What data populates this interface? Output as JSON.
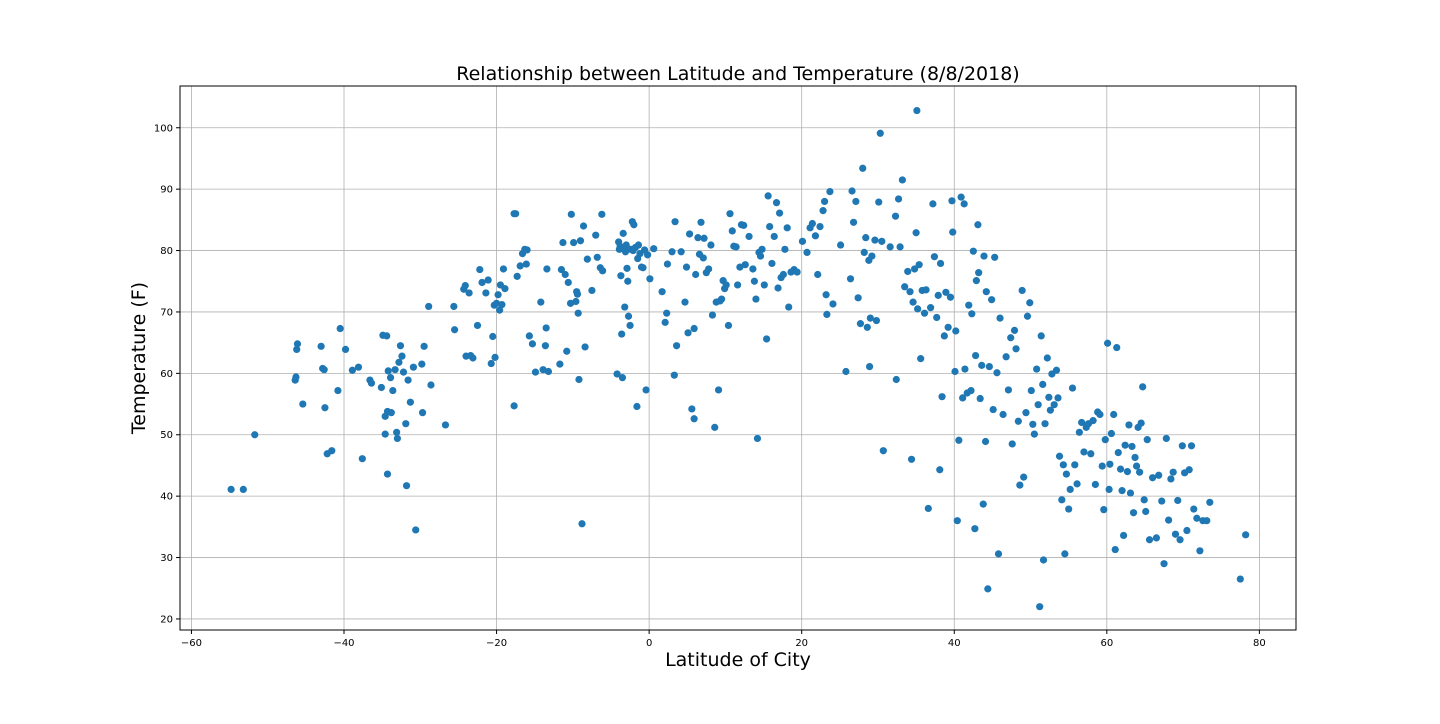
{
  "chart_data": {
    "type": "scatter",
    "title": "Relationship between Latitude and Temperature (8/8/2018)",
    "xlabel": "Latitude of City",
    "ylabel": "Temperature (F)",
    "xlim": [
      -61.5,
      84.8
    ],
    "ylim": [
      18.2,
      106.8
    ],
    "xticks": [
      -60,
      -40,
      -20,
      0,
      20,
      40,
      60,
      80
    ],
    "yticks": [
      20,
      30,
      40,
      50,
      60,
      70,
      80,
      90,
      100
    ],
    "xtick_labels": [
      "−60",
      "−40",
      "−20",
      "0",
      "20",
      "40",
      "60",
      "80"
    ],
    "ytick_labels": [
      "20",
      "30",
      "40",
      "50",
      "60",
      "70",
      "80",
      "90",
      "100"
    ],
    "grid": true,
    "marker_color": "#1f77b4",
    "points": [
      [
        -54.8,
        41.1
      ],
      [
        -53.2,
        41.1
      ],
      [
        -51.7,
        50.0
      ],
      [
        -46.4,
        58.9
      ],
      [
        -46.3,
        59.4
      ],
      [
        -46.2,
        63.9
      ],
      [
        -46.1,
        64.8
      ],
      [
        -45.4,
        55.0
      ],
      [
        -43.0,
        64.4
      ],
      [
        -42.8,
        60.8
      ],
      [
        -42.6,
        60.6
      ],
      [
        -42.5,
        54.4
      ],
      [
        -42.2,
        46.9
      ],
      [
        -41.6,
        47.4
      ],
      [
        -40.8,
        57.2
      ],
      [
        -40.5,
        67.3
      ],
      [
        -39.8,
        63.9
      ],
      [
        -38.9,
        60.5
      ],
      [
        -38.1,
        61.0
      ],
      [
        -37.6,
        46.1
      ],
      [
        -36.6,
        58.9
      ],
      [
        -36.4,
        58.4
      ],
      [
        -35.1,
        57.7
      ],
      [
        -34.9,
        66.2
      ],
      [
        -34.6,
        50.1
      ],
      [
        -34.4,
        66.1
      ],
      [
        -34.6,
        53.0
      ],
      [
        -34.3,
        53.8
      ],
      [
        -34.3,
        43.6
      ],
      [
        -34.2,
        60.4
      ],
      [
        -33.9,
        59.3
      ],
      [
        -33.8,
        53.6
      ],
      [
        -33.6,
        57.2
      ],
      [
        -33.3,
        60.6
      ],
      [
        -33.1,
        50.4
      ],
      [
        -33.0,
        49.4
      ],
      [
        -32.8,
        61.8
      ],
      [
        -32.6,
        64.5
      ],
      [
        -32.4,
        62.8
      ],
      [
        -32.2,
        60.2
      ],
      [
        -31.9,
        51.8
      ],
      [
        -31.8,
        41.7
      ],
      [
        -31.6,
        58.9
      ],
      [
        -31.3,
        55.3
      ],
      [
        -30.9,
        61.0
      ],
      [
        -30.6,
        34.5
      ],
      [
        -29.8,
        61.5
      ],
      [
        -29.7,
        53.6
      ],
      [
        -29.5,
        64.4
      ],
      [
        -28.9,
        70.9
      ],
      [
        -28.6,
        58.1
      ],
      [
        -26.7,
        51.6
      ],
      [
        -25.6,
        70.9
      ],
      [
        -25.5,
        67.1
      ],
      [
        -24.3,
        73.7
      ],
      [
        -24.1,
        74.3
      ],
      [
        -24.0,
        62.8
      ],
      [
        -23.6,
        73.1
      ],
      [
        -23.4,
        62.9
      ],
      [
        -23.1,
        62.5
      ],
      [
        -22.5,
        67.8
      ],
      [
        -22.2,
        76.9
      ],
      [
        -21.9,
        74.8
      ],
      [
        -21.4,
        73.1
      ],
      [
        -21.1,
        75.2
      ],
      [
        -20.7,
        61.6
      ],
      [
        -20.5,
        66.0
      ],
      [
        -20.3,
        71.1
      ],
      [
        -20.2,
        62.6
      ],
      [
        -20.0,
        71.4
      ],
      [
        -19.8,
        72.8
      ],
      [
        -19.6,
        70.3
      ],
      [
        -19.5,
        74.4
      ],
      [
        -19.3,
        71.2
      ],
      [
        -19.1,
        77.0
      ],
      [
        -18.9,
        73.8
      ],
      [
        -17.7,
        86.0
      ],
      [
        -17.5,
        86.0
      ],
      [
        -17.7,
        54.7
      ],
      [
        -17.3,
        75.8
      ],
      [
        -16.9,
        77.5
      ],
      [
        -16.6,
        79.5
      ],
      [
        -16.3,
        80.2
      ],
      [
        -16.1,
        77.8
      ],
      [
        -16.0,
        80.1
      ],
      [
        -15.7,
        66.1
      ],
      [
        -15.3,
        64.8
      ],
      [
        -14.9,
        60.2
      ],
      [
        -14.2,
        71.6
      ],
      [
        -13.9,
        60.6
      ],
      [
        -13.6,
        64.5
      ],
      [
        -13.5,
        67.4
      ],
      [
        -13.4,
        77.0
      ],
      [
        -13.2,
        60.3
      ],
      [
        -11.7,
        61.5
      ],
      [
        -11.5,
        76.9
      ],
      [
        -11.3,
        81.3
      ],
      [
        -11.0,
        76.1
      ],
      [
        -10.8,
        63.6
      ],
      [
        -10.6,
        74.8
      ],
      [
        -10.3,
        71.4
      ],
      [
        -10.2,
        85.9
      ],
      [
        -9.9,
        81.3
      ],
      [
        -9.6,
        71.7
      ],
      [
        -9.5,
        73.3
      ],
      [
        -9.4,
        72.9
      ],
      [
        -9.3,
        69.8
      ],
      [
        -9.2,
        59.0
      ],
      [
        -9.0,
        81.6
      ],
      [
        -8.8,
        35.5
      ],
      [
        -8.6,
        84.0
      ],
      [
        -8.4,
        64.3
      ],
      [
        -8.1,
        78.6
      ],
      [
        -7.5,
        73.5
      ],
      [
        -7.0,
        82.5
      ],
      [
        -6.8,
        78.9
      ],
      [
        -6.4,
        77.2
      ],
      [
        -6.2,
        85.9
      ],
      [
        -6.1,
        76.7
      ],
      [
        -4.2,
        59.9
      ],
      [
        -4.0,
        81.4
      ],
      [
        -3.9,
        80.2
      ],
      [
        -3.8,
        80.7
      ],
      [
        -3.7,
        75.9
      ],
      [
        -3.6,
        66.4
      ],
      [
        -3.5,
        59.3
      ],
      [
        -3.4,
        82.8
      ],
      [
        -3.3,
        80.2
      ],
      [
        -3.2,
        70.8
      ],
      [
        -3.1,
        79.8
      ],
      [
        -3.0,
        80.9
      ],
      [
        -2.9,
        77.1
      ],
      [
        -2.8,
        75.0
      ],
      [
        -2.7,
        69.3
      ],
      [
        -2.5,
        67.8
      ],
      [
        -2.4,
        80.2
      ],
      [
        -2.2,
        84.7
      ],
      [
        -2.1,
        80.0
      ],
      [
        -2.0,
        84.2
      ],
      [
        -1.8,
        80.5
      ],
      [
        -1.6,
        54.6
      ],
      [
        -1.5,
        78.7
      ],
      [
        -1.4,
        80.9
      ],
      [
        -1.2,
        79.5
      ],
      [
        -1.0,
        77.3
      ],
      [
        -0.8,
        77.2
      ],
      [
        -0.6,
        80.1
      ],
      [
        -0.4,
        57.3
      ],
      [
        -0.2,
        79.3
      ],
      [
        0.1,
        75.4
      ],
      [
        0.6,
        80.3
      ],
      [
        1.7,
        73.3
      ],
      [
        2.1,
        68.3
      ],
      [
        2.3,
        69.8
      ],
      [
        2.4,
        77.8
      ],
      [
        3.0,
        79.8
      ],
      [
        3.3,
        59.7
      ],
      [
        3.4,
        84.7
      ],
      [
        3.6,
        64.5
      ],
      [
        4.2,
        79.8
      ],
      [
        4.7,
        71.6
      ],
      [
        4.9,
        77.3
      ],
      [
        5.1,
        66.6
      ],
      [
        5.3,
        82.7
      ],
      [
        5.6,
        54.2
      ],
      [
        5.9,
        67.3
      ],
      [
        5.9,
        52.6
      ],
      [
        6.1,
        76.1
      ],
      [
        6.4,
        82.1
      ],
      [
        6.6,
        79.4
      ],
      [
        6.8,
        84.6
      ],
      [
        7.1,
        78.8
      ],
      [
        7.2,
        82.0
      ],
      [
        7.5,
        76.4
      ],
      [
        7.8,
        77.0
      ],
      [
        8.1,
        80.9
      ],
      [
        8.3,
        69.5
      ],
      [
        8.6,
        51.2
      ],
      [
        8.8,
        71.6
      ],
      [
        9.1,
        57.3
      ],
      [
        9.3,
        71.8
      ],
      [
        9.5,
        72.1
      ],
      [
        9.7,
        75.1
      ],
      [
        9.9,
        73.8
      ],
      [
        10.1,
        74.4
      ],
      [
        10.4,
        67.8
      ],
      [
        10.6,
        86.0
      ],
      [
        10.9,
        83.2
      ],
      [
        11.1,
        80.7
      ],
      [
        11.4,
        80.6
      ],
      [
        11.6,
        74.4
      ],
      [
        11.9,
        77.3
      ],
      [
        12.1,
        84.2
      ],
      [
        12.4,
        84.1
      ],
      [
        12.6,
        77.7
      ],
      [
        13.1,
        82.3
      ],
      [
        13.6,
        77.0
      ],
      [
        13.8,
        75.0
      ],
      [
        14.0,
        72.1
      ],
      [
        14.2,
        49.4
      ],
      [
        14.4,
        79.7
      ],
      [
        14.6,
        79.1
      ],
      [
        14.8,
        80.2
      ],
      [
        15.1,
        74.4
      ],
      [
        15.4,
        65.6
      ],
      [
        15.6,
        88.9
      ],
      [
        15.8,
        83.9
      ],
      [
        16.1,
        77.9
      ],
      [
        16.4,
        82.3
      ],
      [
        16.7,
        87.8
      ],
      [
        16.9,
        73.9
      ],
      [
        17.1,
        86.1
      ],
      [
        17.3,
        75.6
      ],
      [
        17.6,
        76.1
      ],
      [
        17.8,
        80.2
      ],
      [
        18.1,
        83.7
      ],
      [
        18.3,
        70.8
      ],
      [
        18.6,
        76.5
      ],
      [
        19.0,
        76.9
      ],
      [
        19.4,
        76.5
      ],
      [
        20.1,
        81.5
      ],
      [
        20.7,
        79.7
      ],
      [
        21.1,
        83.7
      ],
      [
        21.4,
        84.4
      ],
      [
        21.8,
        82.4
      ],
      [
        22.1,
        76.1
      ],
      [
        22.4,
        83.9
      ],
      [
        22.8,
        86.5
      ],
      [
        23.2,
        72.8
      ],
      [
        23.0,
        88.0
      ],
      [
        23.3,
        69.6
      ],
      [
        23.7,
        89.6
      ],
      [
        24.1,
        71.3
      ],
      [
        25.1,
        80.9
      ],
      [
        25.8,
        60.3
      ],
      [
        26.4,
        75.4
      ],
      [
        26.6,
        89.7
      ],
      [
        26.8,
        84.6
      ],
      [
        27.1,
        88.0
      ],
      [
        27.4,
        72.3
      ],
      [
        27.7,
        68.1
      ],
      [
        28.0,
        93.4
      ],
      [
        28.2,
        79.7
      ],
      [
        28.4,
        82.1
      ],
      [
        28.6,
        67.5
      ],
      [
        28.8,
        78.4
      ],
      [
        28.9,
        61.1
      ],
      [
        29.0,
        69.0
      ],
      [
        29.2,
        79.1
      ],
      [
        29.6,
        81.7
      ],
      [
        29.8,
        68.6
      ],
      [
        30.1,
        87.9
      ],
      [
        30.3,
        99.1
      ],
      [
        30.5,
        81.5
      ],
      [
        30.7,
        47.4
      ],
      [
        31.6,
        80.6
      ],
      [
        32.3,
        85.6
      ],
      [
        32.4,
        59.0
      ],
      [
        32.7,
        88.4
      ],
      [
        32.9,
        80.6
      ],
      [
        33.2,
        91.5
      ],
      [
        33.5,
        74.1
      ],
      [
        33.9,
        76.6
      ],
      [
        34.2,
        73.3
      ],
      [
        34.4,
        46.0
      ],
      [
        34.6,
        71.6
      ],
      [
        34.8,
        77.0
      ],
      [
        35.0,
        82.9
      ],
      [
        35.1,
        102.8
      ],
      [
        35.2,
        70.5
      ],
      [
        35.4,
        77.7
      ],
      [
        35.6,
        62.4
      ],
      [
        35.8,
        73.5
      ],
      [
        36.1,
        69.8
      ],
      [
        36.3,
        73.6
      ],
      [
        36.6,
        38.0
      ],
      [
        36.9,
        70.7
      ],
      [
        37.2,
        87.6
      ],
      [
        37.4,
        79.0
      ],
      [
        37.7,
        69.1
      ],
      [
        37.9,
        72.7
      ],
      [
        38.1,
        44.3
      ],
      [
        38.2,
        77.9
      ],
      [
        38.4,
        56.2
      ],
      [
        38.7,
        66.1
      ],
      [
        38.9,
        73.2
      ],
      [
        39.2,
        67.5
      ],
      [
        39.5,
        72.4
      ],
      [
        39.7,
        88.1
      ],
      [
        39.8,
        83.0
      ],
      [
        40.1,
        60.3
      ],
      [
        40.2,
        66.9
      ],
      [
        40.4,
        36.0
      ],
      [
        40.6,
        49.1
      ],
      [
        40.9,
        88.7
      ],
      [
        41.1,
        56.0
      ],
      [
        41.3,
        87.6
      ],
      [
        41.4,
        60.7
      ],
      [
        41.7,
        56.8
      ],
      [
        41.9,
        71.1
      ],
      [
        42.2,
        57.2
      ],
      [
        42.3,
        69.7
      ],
      [
        42.5,
        79.9
      ],
      [
        42.7,
        34.7
      ],
      [
        42.8,
        62.9
      ],
      [
        42.9,
        75.1
      ],
      [
        43.1,
        84.2
      ],
      [
        43.2,
        76.4
      ],
      [
        43.4,
        55.9
      ],
      [
        43.6,
        61.3
      ],
      [
        43.8,
        38.7
      ],
      [
        43.9,
        79.1
      ],
      [
        44.1,
        48.9
      ],
      [
        44.2,
        73.3
      ],
      [
        44.4,
        24.9
      ],
      [
        44.6,
        61.1
      ],
      [
        44.9,
        72.0
      ],
      [
        45.1,
        54.1
      ],
      [
        45.3,
        78.9
      ],
      [
        45.6,
        60.1
      ],
      [
        45.8,
        30.6
      ],
      [
        46.0,
        69.0
      ],
      [
        46.4,
        53.3
      ],
      [
        46.8,
        62.7
      ],
      [
        47.1,
        57.3
      ],
      [
        47.4,
        65.8
      ],
      [
        47.6,
        48.5
      ],
      [
        47.9,
        67.0
      ],
      [
        48.1,
        64.0
      ],
      [
        48.4,
        52.2
      ],
      [
        48.6,
        41.8
      ],
      [
        48.9,
        73.5
      ],
      [
        49.1,
        43.1
      ],
      [
        49.4,
        53.6
      ],
      [
        49.6,
        69.3
      ],
      [
        49.9,
        71.5
      ],
      [
        50.1,
        57.2
      ],
      [
        50.3,
        51.7
      ],
      [
        50.5,
        50.1
      ],
      [
        50.8,
        60.7
      ],
      [
        51.0,
        54.9
      ],
      [
        51.2,
        22.0
      ],
      [
        51.4,
        66.1
      ],
      [
        51.6,
        58.2
      ],
      [
        51.7,
        29.6
      ],
      [
        51.9,
        51.8
      ],
      [
        52.2,
        62.5
      ],
      [
        52.4,
        56.1
      ],
      [
        52.6,
        54.0
      ],
      [
        52.8,
        59.9
      ],
      [
        53.1,
        54.9
      ],
      [
        53.4,
        60.5
      ],
      [
        53.6,
        56.0
      ],
      [
        53.8,
        46.5
      ],
      [
        54.1,
        39.4
      ],
      [
        54.3,
        45.1
      ],
      [
        54.5,
        30.6
      ],
      [
        54.7,
        43.6
      ],
      [
        55.0,
        37.9
      ],
      [
        55.2,
        41.1
      ],
      [
        55.5,
        57.6
      ],
      [
        55.8,
        45.1
      ],
      [
        56.1,
        42.0
      ],
      [
        56.4,
        50.4
      ],
      [
        56.7,
        52.0
      ],
      [
        57.0,
        47.2
      ],
      [
        57.3,
        51.2
      ],
      [
        57.6,
        51.8
      ],
      [
        57.9,
        46.9
      ],
      [
        58.2,
        52.3
      ],
      [
        58.5,
        41.9
      ],
      [
        58.8,
        53.7
      ],
      [
        59.1,
        53.3
      ],
      [
        59.4,
        44.9
      ],
      [
        59.6,
        37.8
      ],
      [
        59.8,
        49.2
      ],
      [
        60.1,
        64.9
      ],
      [
        60.3,
        41.1
      ],
      [
        60.4,
        45.2
      ],
      [
        60.6,
        50.2
      ],
      [
        60.9,
        53.3
      ],
      [
        61.1,
        31.3
      ],
      [
        61.3,
        64.2
      ],
      [
        61.5,
        47.1
      ],
      [
        61.8,
        44.4
      ],
      [
        62.0,
        40.9
      ],
      [
        62.2,
        33.6
      ],
      [
        62.4,
        48.3
      ],
      [
        62.7,
        44.0
      ],
      [
        62.9,
        51.6
      ],
      [
        63.1,
        40.5
      ],
      [
        63.3,
        48.1
      ],
      [
        63.5,
        37.3
      ],
      [
        63.7,
        46.3
      ],
      [
        63.9,
        44.9
      ],
      [
        64.1,
        51.2
      ],
      [
        64.3,
        43.9
      ],
      [
        64.5,
        51.9
      ],
      [
        64.7,
        57.8
      ],
      [
        64.9,
        39.4
      ],
      [
        65.1,
        37.5
      ],
      [
        65.3,
        49.2
      ],
      [
        65.6,
        32.9
      ],
      [
        66.0,
        43.0
      ],
      [
        66.5,
        33.2
      ],
      [
        66.8,
        43.4
      ],
      [
        67.2,
        39.2
      ],
      [
        67.5,
        29.0
      ],
      [
        67.8,
        49.4
      ],
      [
        68.1,
        36.1
      ],
      [
        68.4,
        42.8
      ],
      [
        68.7,
        43.9
      ],
      [
        69.0,
        33.8
      ],
      [
        69.3,
        39.3
      ],
      [
        69.6,
        32.9
      ],
      [
        69.9,
        48.2
      ],
      [
        70.2,
        43.8
      ],
      [
        70.5,
        34.4
      ],
      [
        70.8,
        44.3
      ],
      [
        71.1,
        48.2
      ],
      [
        71.4,
        37.9
      ],
      [
        71.8,
        36.4
      ],
      [
        72.2,
        31.1
      ],
      [
        72.6,
        36.0
      ],
      [
        73.1,
        36.0
      ],
      [
        73.5,
        39.0
      ],
      [
        77.5,
        26.5
      ],
      [
        78.2,
        33.7
      ]
    ]
  }
}
